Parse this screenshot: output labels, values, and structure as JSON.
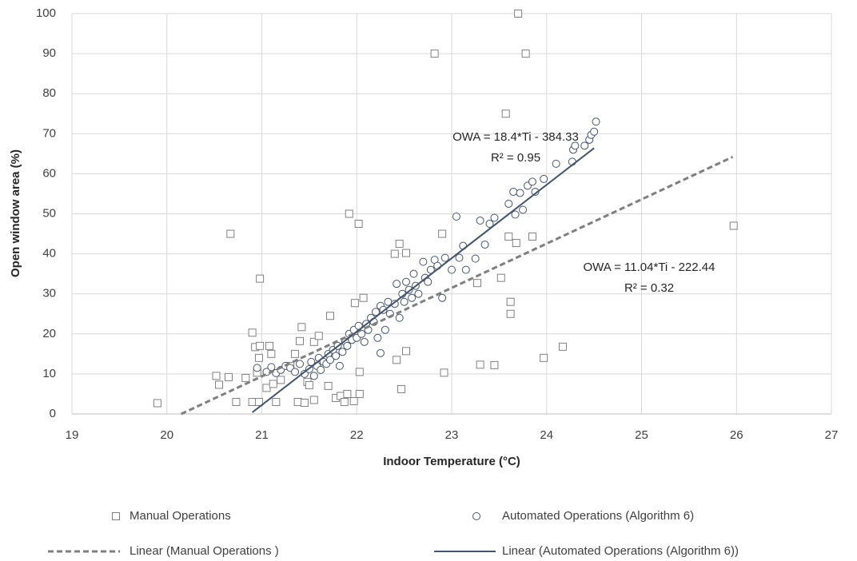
{
  "chart_data": {
    "type": "scatter",
    "xlabel": "Indoor Temperature (°C)",
    "ylabel": "Open window area (%)",
    "xlim": [
      19,
      27
    ],
    "xticks": [
      19,
      20,
      21,
      22,
      23,
      24,
      25,
      26,
      27
    ],
    "ylim": [
      0,
      100
    ],
    "yticks": [
      0,
      10,
      20,
      30,
      40,
      50,
      60,
      70,
      80,
      90,
      100
    ],
    "grid": true,
    "series": [
      {
        "name": "Manual Operations",
        "color": "#808080",
        "marker": "square",
        "x": [
          19.9,
          20.52,
          20.55,
          20.65,
          20.67,
          20.73,
          20.83,
          20.9,
          20.9,
          20.93,
          20.95,
          20.97,
          20.97,
          20.98,
          20.98,
          21.05,
          21.08,
          21.1,
          21.12,
          21.15,
          21.2,
          21.3,
          21.35,
          21.38,
          21.4,
          21.42,
          21.45,
          21.48,
          21.5,
          21.55,
          21.55,
          21.6,
          21.7,
          21.72,
          21.78,
          21.83,
          21.87,
          21.9,
          21.92,
          21.97,
          21.98,
          22.02,
          22.03,
          22.03,
          22.07,
          22.4,
          22.42,
          22.45,
          22.47,
          22.52,
          22.52,
          22.82,
          22.9,
          22.92,
          23.27,
          23.3,
          23.45,
          23.52,
          23.57,
          23.6,
          23.62,
          23.62,
          23.68,
          23.7,
          23.78,
          23.85,
          23.97,
          24.17,
          25.97
        ],
        "values": [
          2.7,
          9.5,
          7.3,
          9.2,
          45,
          3,
          9,
          3,
          20.3,
          16.7,
          10.3,
          3,
          14,
          33.8,
          17,
          6.5,
          17,
          15,
          7.5,
          3,
          8.5,
          12,
          15,
          3,
          18.2,
          21.7,
          2.8,
          8,
          7.2,
          18,
          3.5,
          19.5,
          7,
          24.5,
          4,
          4.5,
          3,
          5,
          50,
          3.2,
          27.7,
          47.5,
          5,
          10.5,
          29,
          40,
          13.5,
          42.5,
          6.2,
          40.2,
          15.7,
          90,
          45,
          10.3,
          32.7,
          12.3,
          12.2,
          34,
          75,
          44.3,
          28,
          25,
          42.7,
          100,
          90,
          44.3,
          14,
          16.8,
          47
        ]
      },
      {
        "name": "Automated Operations (Algorithm 6)",
        "color": "#44546a",
        "marker": "circle",
        "x": [
          20.95,
          21.05,
          21.1,
          21.15,
          21.2,
          21.25,
          21.3,
          21.35,
          21.4,
          21.45,
          21.5,
          21.52,
          21.55,
          21.58,
          21.6,
          21.62,
          21.65,
          21.68,
          21.7,
          21.72,
          21.75,
          21.78,
          21.8,
          21.82,
          21.85,
          21.88,
          21.9,
          21.92,
          21.95,
          21.97,
          22.0,
          22.02,
          22.05,
          22.08,
          22.1,
          22.12,
          22.15,
          22.18,
          22.2,
          22.22,
          22.25,
          22.25,
          22.28,
          22.3,
          22.33,
          22.35,
          22.4,
          22.42,
          22.45,
          22.48,
          22.5,
          22.52,
          22.55,
          22.58,
          22.6,
          22.62,
          22.65,
          22.7,
          22.72,
          22.75,
          22.78,
          22.82,
          22.85,
          22.9,
          22.93,
          23.0,
          23.05,
          23.08,
          23.12,
          23.15,
          23.25,
          23.3,
          23.35,
          23.4,
          23.45,
          23.6,
          23.65,
          23.67,
          23.72,
          23.75,
          23.8,
          23.85,
          23.88,
          23.97,
          24.1,
          24.27,
          24.28,
          24.3,
          24.4,
          24.45,
          24.47,
          24.5,
          24.52
        ],
        "values": [
          11.5,
          10.5,
          11.7,
          10.2,
          11,
          12,
          11.5,
          10.5,
          12.5,
          10,
          11.2,
          13,
          9.5,
          12,
          14,
          11,
          13,
          12.5,
          15,
          13.5,
          16,
          14.5,
          17,
          12,
          15.5,
          18,
          17,
          20,
          18.5,
          21,
          19,
          22,
          20,
          18,
          22.5,
          21,
          24,
          23,
          25.5,
          19,
          27,
          15.2,
          26,
          21,
          28,
          25,
          27.5,
          32.5,
          24,
          30,
          28,
          33,
          31,
          29,
          35,
          32,
          30,
          38,
          34,
          33,
          36,
          38.5,
          37,
          29,
          39,
          36,
          49.3,
          39,
          42,
          36,
          38.8,
          48.3,
          42.3,
          47.5,
          49,
          52.5,
          55.5,
          49.8,
          55.2,
          51,
          57,
          58,
          55.5,
          58.7,
          62.5,
          63,
          66,
          67,
          67,
          68.5,
          69.7,
          70.5,
          73
        ]
      }
    ],
    "trendlines": [
      {
        "name": "Linear (Manual Operations )",
        "color": "#7f7f7f",
        "dashed": true,
        "x": [
          20.15,
          25.96
        ],
        "values": [
          0,
          64.2
        ]
      },
      {
        "name": "Linear (Automated Operations (Algorithm 6))",
        "color": "#44546a",
        "dashed": false,
        "x": [
          20.9,
          24.5
        ],
        "values": [
          0.4,
          66.4
        ]
      }
    ],
    "annotations": [
      "OWA = 18.4*Ti - 384.33",
      "R² = 0.95",
      "OWA = 11.04*Ti - 222.44",
      "R² = 0.32"
    ]
  }
}
